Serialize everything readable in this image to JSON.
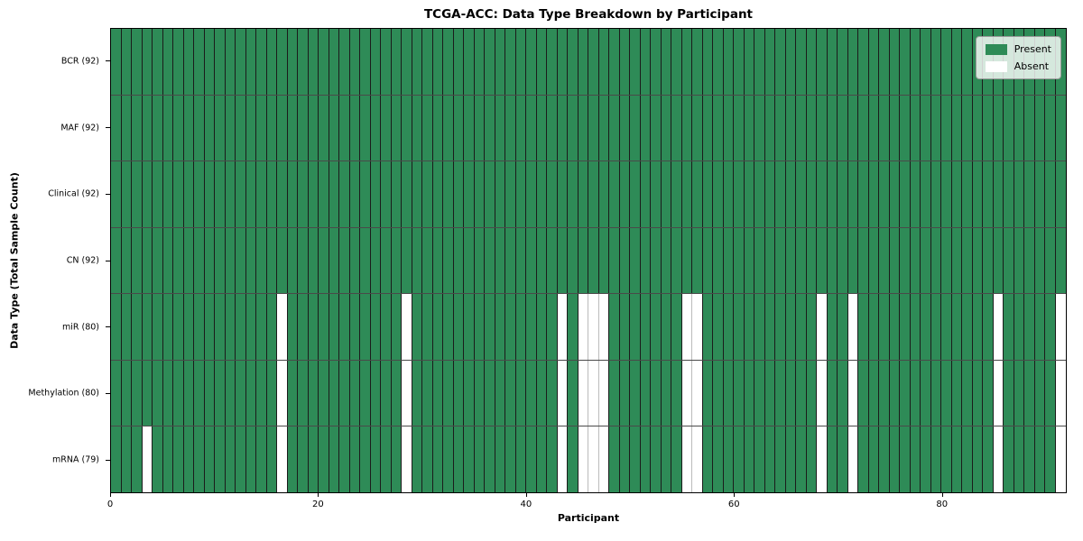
{
  "title": "TCGA-ACC: Data Type Breakdown by Participant",
  "chart_data": {
    "type": "heatmap",
    "title": "TCGA-ACC: Data Type Breakdown by Participant",
    "xlabel": "Participant",
    "ylabel": "Data Type (Total Sample Count)",
    "n_participants": 92,
    "x_ticks": [
      0,
      20,
      40,
      60,
      80
    ],
    "rows": [
      {
        "label": "BCR (92)",
        "present_count": 92,
        "absent": []
      },
      {
        "label": "MAF (92)",
        "present_count": 92,
        "absent": []
      },
      {
        "label": "Clinical (92)",
        "present_count": 92,
        "absent": []
      },
      {
        "label": "CN (92)",
        "present_count": 92,
        "absent": []
      },
      {
        "label": "miR (80)",
        "present_count": 80,
        "absent": [
          16,
          28,
          43,
          45,
          46,
          47,
          55,
          56,
          68,
          71,
          85,
          91
        ]
      },
      {
        "label": "Methylation (80)",
        "present_count": 80,
        "absent": [
          16,
          28,
          43,
          45,
          46,
          47,
          55,
          56,
          68,
          71,
          85,
          91
        ]
      },
      {
        "label": "mRNA (79)",
        "present_count": 79,
        "absent": [
          3,
          16,
          28,
          43,
          45,
          46,
          47,
          55,
          56,
          68,
          71,
          85,
          91
        ]
      }
    ],
    "legend": [
      {
        "label": "Present",
        "color": "#2e8b57"
      },
      {
        "label": "Absent",
        "color": "#ffffff"
      }
    ],
    "colors": {
      "present": "#2e8b57",
      "absent": "#ffffff",
      "cell_border_present": "#1b1b1b",
      "cell_border_absent": "#bbbbbb",
      "row_separator": "#4a4a4a",
      "frame": "#000000",
      "background": "#ffffff"
    },
    "legend_position": "upper right",
    "grid": true
  }
}
